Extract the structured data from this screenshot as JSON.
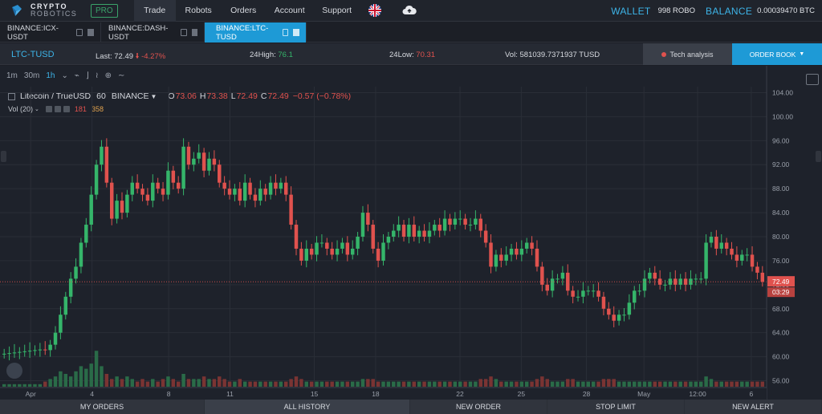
{
  "brand": {
    "name": "CRYPTO",
    "sub": "ROBOTICS",
    "badge": "PRO"
  },
  "nav": [
    {
      "label": "Trade",
      "active": true
    },
    {
      "label": "Robots"
    },
    {
      "label": "Orders"
    },
    {
      "label": "Account"
    },
    {
      "label": "Support"
    }
  ],
  "wallet": {
    "label": "WALLET",
    "value": "998 ROBO",
    "balance_label": "BALANCE",
    "balance_value": "0.00039470 BTC"
  },
  "tabs": [
    {
      "label": "BINANCE:ICX-USDT"
    },
    {
      "label": "BINANCE:DASH-USDT"
    },
    {
      "label": "BINANCE:LTC-TUSD",
      "active": true
    }
  ],
  "info": {
    "pair": "LTC-TUSD",
    "last_label": "Last:",
    "last_value": "72.49",
    "last_change": "-4.27%",
    "high_label": "24High:",
    "high_value": "76.1",
    "low_label": "24Low:",
    "low_value": "70.31",
    "vol_label": "Vol:",
    "vol_value": "581039.7371937 TUSD",
    "tech_btn": "Tech analysis",
    "orderbook_btn": "ORDER BOOK"
  },
  "toolbar": {
    "intervals": [
      "1m",
      "30m",
      "1h"
    ],
    "selected": "1h"
  },
  "legend": {
    "symbol": "Litecoin / TrueUSD",
    "interval": "60",
    "exchange": "BINANCE",
    "o": "73.06",
    "h": "73.38",
    "l": "72.49",
    "c": "72.49",
    "change": "−0.57 (−0.78%)",
    "vol_label": "Vol (20)",
    "vol_a": "181",
    "vol_b": "358"
  },
  "chart_data": {
    "type": "candlestick",
    "title": "Litecoin / TrueUSD",
    "ylim": [
      55,
      105
    ],
    "y_ticks": [
      "104.00",
      "100.00",
      "96.00",
      "92.00",
      "88.00",
      "84.00",
      "80.00",
      "76.00",
      "72.00",
      "68.00",
      "64.00",
      "60.00",
      "56.00"
    ],
    "x_ticks": [
      "Apr",
      "4",
      "8",
      "11",
      "15",
      "18",
      "22",
      "25",
      "28",
      "May",
      "12:00",
      "6"
    ],
    "x_positions": [
      0.04,
      0.12,
      0.22,
      0.3,
      0.41,
      0.49,
      0.6,
      0.68,
      0.765,
      0.84,
      0.91,
      0.98
    ],
    "price_label": "72.49",
    "time_label": "03:29",
    "close_series": [
      60.5,
      60.6,
      60.7,
      60.8,
      60.9,
      61,
      61.1,
      61.2,
      61.1,
      62,
      64,
      67,
      70,
      73,
      75,
      79,
      82,
      87,
      92,
      95,
      89,
      83,
      86,
      84,
      87,
      89,
      88,
      87,
      86,
      89,
      88,
      87,
      91,
      89,
      88,
      95,
      92,
      93,
      94,
      91,
      93,
      92,
      89,
      88,
      87,
      88,
      86,
      89,
      87,
      86,
      88,
      87,
      89,
      88,
      89,
      87,
      82,
      78,
      76,
      78,
      77,
      79,
      79,
      78,
      77,
      78,
      79,
      77,
      78,
      80,
      84,
      82,
      78,
      76,
      79,
      80,
      81,
      82,
      80,
      82,
      80,
      81,
      80,
      81,
      82,
      81,
      83,
      82,
      83,
      83,
      82,
      82,
      83,
      81,
      79,
      75,
      77,
      76,
      77,
      78,
      77,
      78,
      79,
      78,
      75,
      72,
      71,
      73,
      73,
      74,
      71,
      70,
      70,
      71,
      71,
      71,
      70,
      68,
      67,
      66,
      67,
      67,
      69,
      71,
      71,
      73,
      74,
      73,
      72,
      72,
      73,
      72,
      73,
      72,
      73,
      73,
      73,
      79,
      80,
      78,
      79,
      78,
      77,
      76,
      77,
      77,
      75,
      74,
      72.49
    ],
    "volume_series": [
      1,
      1,
      1,
      1,
      1,
      1,
      1,
      1,
      2,
      3,
      4,
      6,
      5,
      4,
      6,
      8,
      7,
      9,
      14,
      8,
      5,
      3,
      4,
      3,
      4,
      3,
      2,
      3,
      2,
      3,
      2,
      3,
      4,
      3,
      2,
      5,
      3,
      3,
      3,
      4,
      3,
      3,
      4,
      3,
      2,
      2,
      3,
      2,
      2,
      2,
      2,
      2,
      2,
      2,
      2,
      2,
      3,
      4,
      3,
      2,
      2,
      2,
      2,
      2,
      2,
      2,
      2,
      2,
      2,
      2,
      3,
      3,
      3,
      2,
      2,
      2,
      2,
      2,
      2,
      2,
      2,
      2,
      2,
      2,
      2,
      2,
      2,
      2,
      2,
      2,
      2,
      2,
      2,
      3,
      3,
      4,
      3,
      2,
      2,
      2,
      2,
      2,
      2,
      2,
      3,
      4,
      3,
      2,
      2,
      2,
      3,
      3,
      2,
      2,
      2,
      2,
      2,
      3,
      3,
      3,
      2,
      2,
      2,
      2,
      2,
      2,
      2,
      2,
      2,
      2,
      2,
      2,
      2,
      2,
      2,
      2,
      2,
      4,
      3,
      2,
      2,
      2,
      2,
      2,
      2,
      2,
      2,
      2,
      2
    ]
  },
  "bottom": [
    "MY ORDERS",
    "ALL HISTORY",
    "NEW ORDER",
    "STOP LIMIT",
    "NEW ALERT"
  ],
  "colors": {
    "accent": "#1e9ad6",
    "up": "#35b56a",
    "down": "#e0524e"
  }
}
